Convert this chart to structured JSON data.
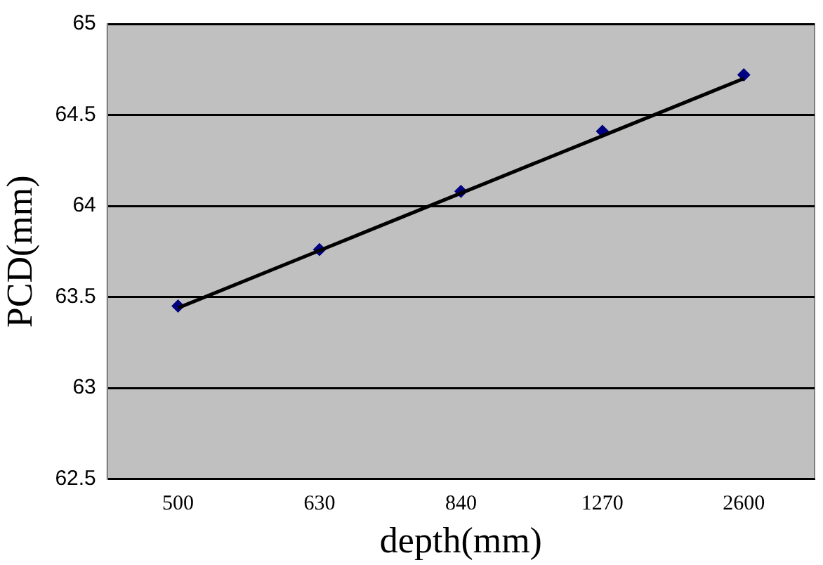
{
  "chart_data": {
    "type": "scatter",
    "xlabel": "depth(mm)",
    "ylabel": "PCD(mm)",
    "categories": [
      "500",
      "630",
      "840",
      "1270",
      "2600"
    ],
    "series": [
      {
        "color": "#000080",
        "marker": "diamond",
        "values": [
          63.45,
          63.76,
          64.08,
          64.41,
          64.72
        ]
      },
      {
        "type": "line",
        "color": "#000000",
        "marker": "none",
        "values": [
          63.44,
          63.755,
          64.07,
          64.385,
          64.7
        ]
      }
    ],
    "ylim": [
      62.5,
      65
    ],
    "yticks": [
      "62.5",
      63,
      "63.5",
      64,
      "64.5",
      65
    ],
    "grid": "y",
    "legend": false
  }
}
